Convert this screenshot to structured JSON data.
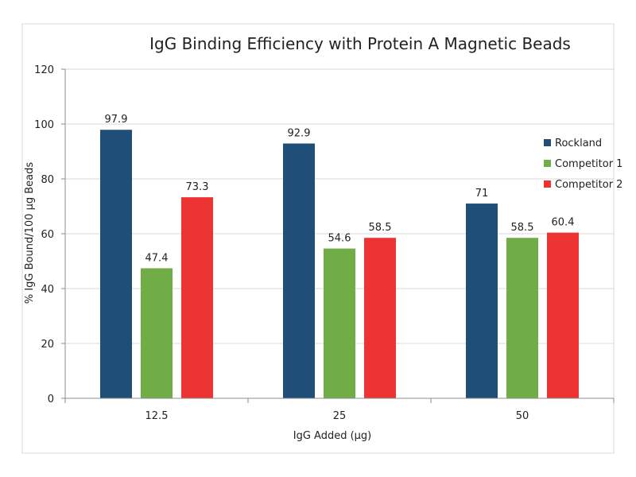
{
  "chart_data": {
    "type": "bar",
    "title": "IgG Binding Efficiency with Protein A Magnetic Beads",
    "xlabel": "IgG Added (µg)",
    "ylabel": "% IgG Bound/100  µg Beads",
    "categories": [
      "12.5",
      "25",
      "50"
    ],
    "ylim": [
      0,
      120
    ],
    "yticks": [
      0,
      20,
      40,
      60,
      80,
      100,
      120
    ],
    "grid": true,
    "legend_position": "right",
    "series": [
      {
        "name": "Rockland",
        "color": "#1f4e79",
        "values": [
          97.9,
          92.9,
          71
        ],
        "labels": [
          "97.9",
          "92.9",
          "71"
        ]
      },
      {
        "name": "Competitor 1",
        "color": "#70ad47",
        "values": [
          47.4,
          54.6,
          58.5
        ],
        "labels": [
          "47.4",
          "54.6",
          "58.5"
        ]
      },
      {
        "name": "Competitor 2",
        "color": "#ee3333",
        "values": [
          73.3,
          58.5,
          60.4
        ],
        "labels": [
          "73.3",
          "58.5",
          "60.4"
        ]
      }
    ]
  }
}
